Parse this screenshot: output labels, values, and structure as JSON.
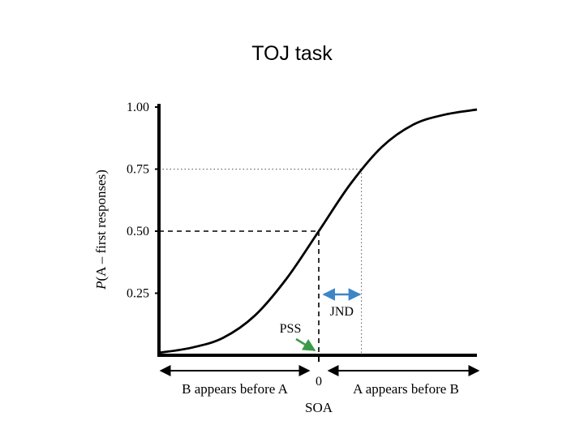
{
  "slide": {
    "title": "TOJ task"
  },
  "chart_data": {
    "type": "line",
    "title": "",
    "ylabel_italic": "P",
    "ylabel_rest": "(A – first responses)",
    "xlabel": "SOA",
    "ylim": [
      0,
      1
    ],
    "xlim": [
      -1,
      1
    ],
    "y_ticks": [
      {
        "value": 0.25,
        "label": "0.25"
      },
      {
        "value": 0.5,
        "label": "0.50"
      },
      {
        "value": 0.75,
        "label": "0.75"
      },
      {
        "value": 1.0,
        "label": "1.00"
      }
    ],
    "x_ticks": [
      {
        "value": 0,
        "label": "0"
      }
    ],
    "series": [
      {
        "x": [
          -1.0,
          -0.8,
          -0.6,
          -0.4,
          -0.2,
          0.0,
          0.2,
          0.4,
          0.6,
          0.8,
          1.0
        ],
        "y": [
          0.01,
          0.03,
          0.07,
          0.16,
          0.31,
          0.5,
          0.69,
          0.84,
          0.93,
          0.97,
          0.99
        ]
      }
    ],
    "annotations": {
      "pss": {
        "label": "PSS",
        "x": 0,
        "y": 0.5,
        "color": "#3a9a4a"
      },
      "jnd": {
        "label": "JND",
        "x_from": 0,
        "x_to": 0.27,
        "y": 0.75,
        "color": "#3d86c6"
      },
      "left_range": "B appears before A",
      "right_range": "A appears before B"
    }
  }
}
